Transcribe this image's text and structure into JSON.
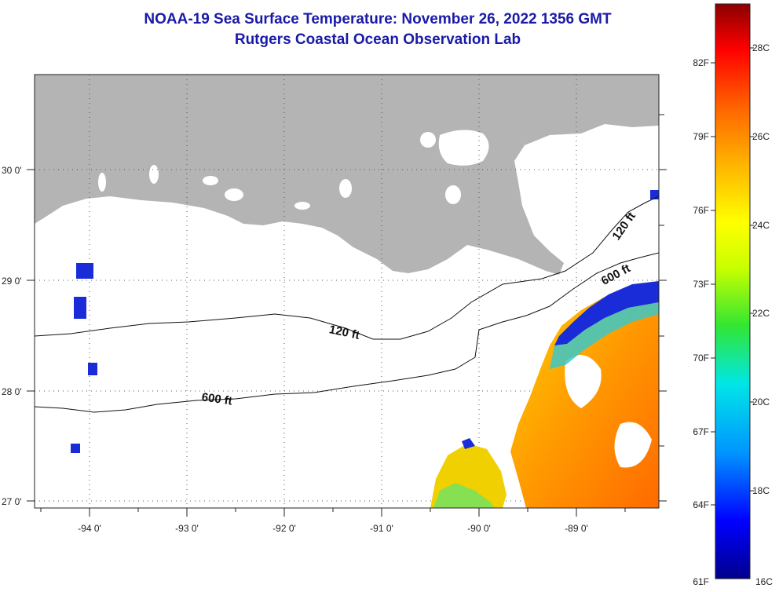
{
  "header": {
    "title": "NOAA-19 Sea Surface Temperature:  November 26, 2022 1356 GMT",
    "subtitle": "Rutgers Coastal Ocean Observation Lab"
  },
  "map": {
    "lon_ticks": [
      "-94 0'",
      "-93 0'",
      "-92 0'",
      "-91 0'",
      "-90 0'",
      "-89 0'"
    ],
    "lat_ticks": [
      "30 0'",
      "29 0'",
      "28 0'",
      "27 0'"
    ],
    "contours": [
      "120 ft",
      "600 ft",
      "120 ft",
      "600 ft"
    ],
    "colors": {
      "land": "#b4b4b4",
      "no_data": "#ffffff"
    }
  },
  "colorbar": {
    "fahrenheit": [
      "82F",
      "79F",
      "76F",
      "73F",
      "70F",
      "67F",
      "64F",
      "61F"
    ],
    "celsius": [
      "28C",
      "26C",
      "24C",
      "22C",
      "20C",
      "18C",
      "16C"
    ],
    "gradient": [
      "#00008c",
      "#0000ff",
      "#0096ff",
      "#00e6e6",
      "#32e632",
      "#c8ff00",
      "#ffff00",
      "#ffb400",
      "#ff6400",
      "#ff0000",
      "#8c0000"
    ]
  }
}
